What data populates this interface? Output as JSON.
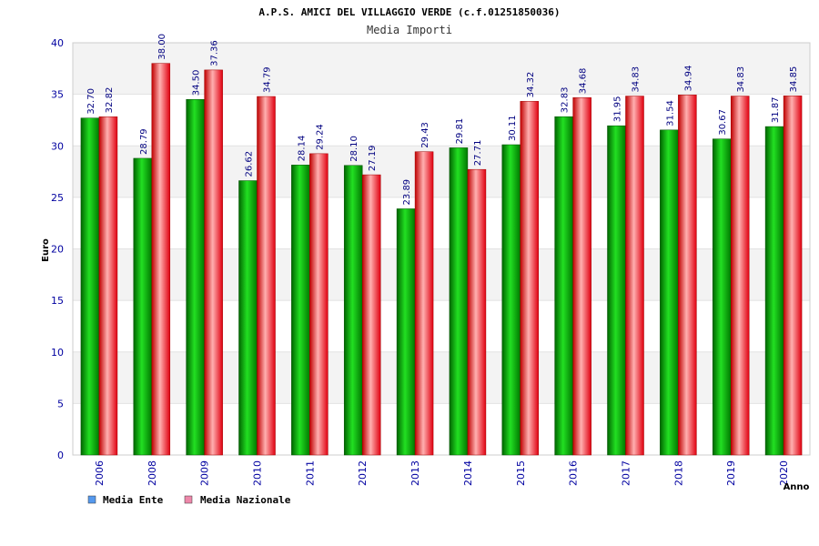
{
  "chart_data": {
    "type": "bar",
    "title": "A.P.S. AMICI DEL VILLAGGIO VERDE (c.f.01251850036)",
    "subtitle": "Media Importi",
    "xlabel": "Anno",
    "ylabel": "Euro",
    "ylim": [
      0,
      40
    ],
    "yticks": [
      0,
      5,
      10,
      15,
      20,
      25,
      30,
      35,
      40
    ],
    "categories": [
      "2006",
      "2008",
      "2009",
      "2010",
      "2011",
      "2012",
      "2013",
      "2014",
      "2015",
      "2016",
      "2017",
      "2018",
      "2019",
      "2020"
    ],
    "series": [
      {
        "name": "Media Ente",
        "color": "#00a000",
        "values": [
          32.7,
          28.79,
          34.5,
          26.62,
          28.14,
          28.1,
          23.89,
          29.81,
          30.11,
          32.83,
          31.95,
          31.54,
          30.67,
          31.87
        ],
        "labels": [
          "32.70",
          "28.79",
          "34.50",
          "26.62",
          "28.14",
          "28.10",
          "23.89",
          "29.81",
          "30.11",
          "32.83",
          "31.95",
          "31.54",
          "30.67",
          "31.87"
        ]
      },
      {
        "name": "Media Nazionale",
        "color": "#e00000",
        "values": [
          32.82,
          38.0,
          37.36,
          34.79,
          29.24,
          27.19,
          29.43,
          27.71,
          34.32,
          34.68,
          34.83,
          34.94,
          34.83,
          34.85
        ],
        "labels": [
          "32.82",
          "38.00",
          "37.36",
          "34.79",
          "29.24",
          "27.19",
          "29.43",
          "27.71",
          "34.32",
          "34.68",
          "34.83",
          "34.94",
          "34.83",
          "34.85"
        ]
      }
    ],
    "legend": [
      {
        "label": "Media Ente",
        "color": "#5599ee"
      },
      {
        "label": "Media Nazionale",
        "color": "#ee88aa"
      }
    ],
    "legend_position": "bottom-left",
    "grid": true
  }
}
